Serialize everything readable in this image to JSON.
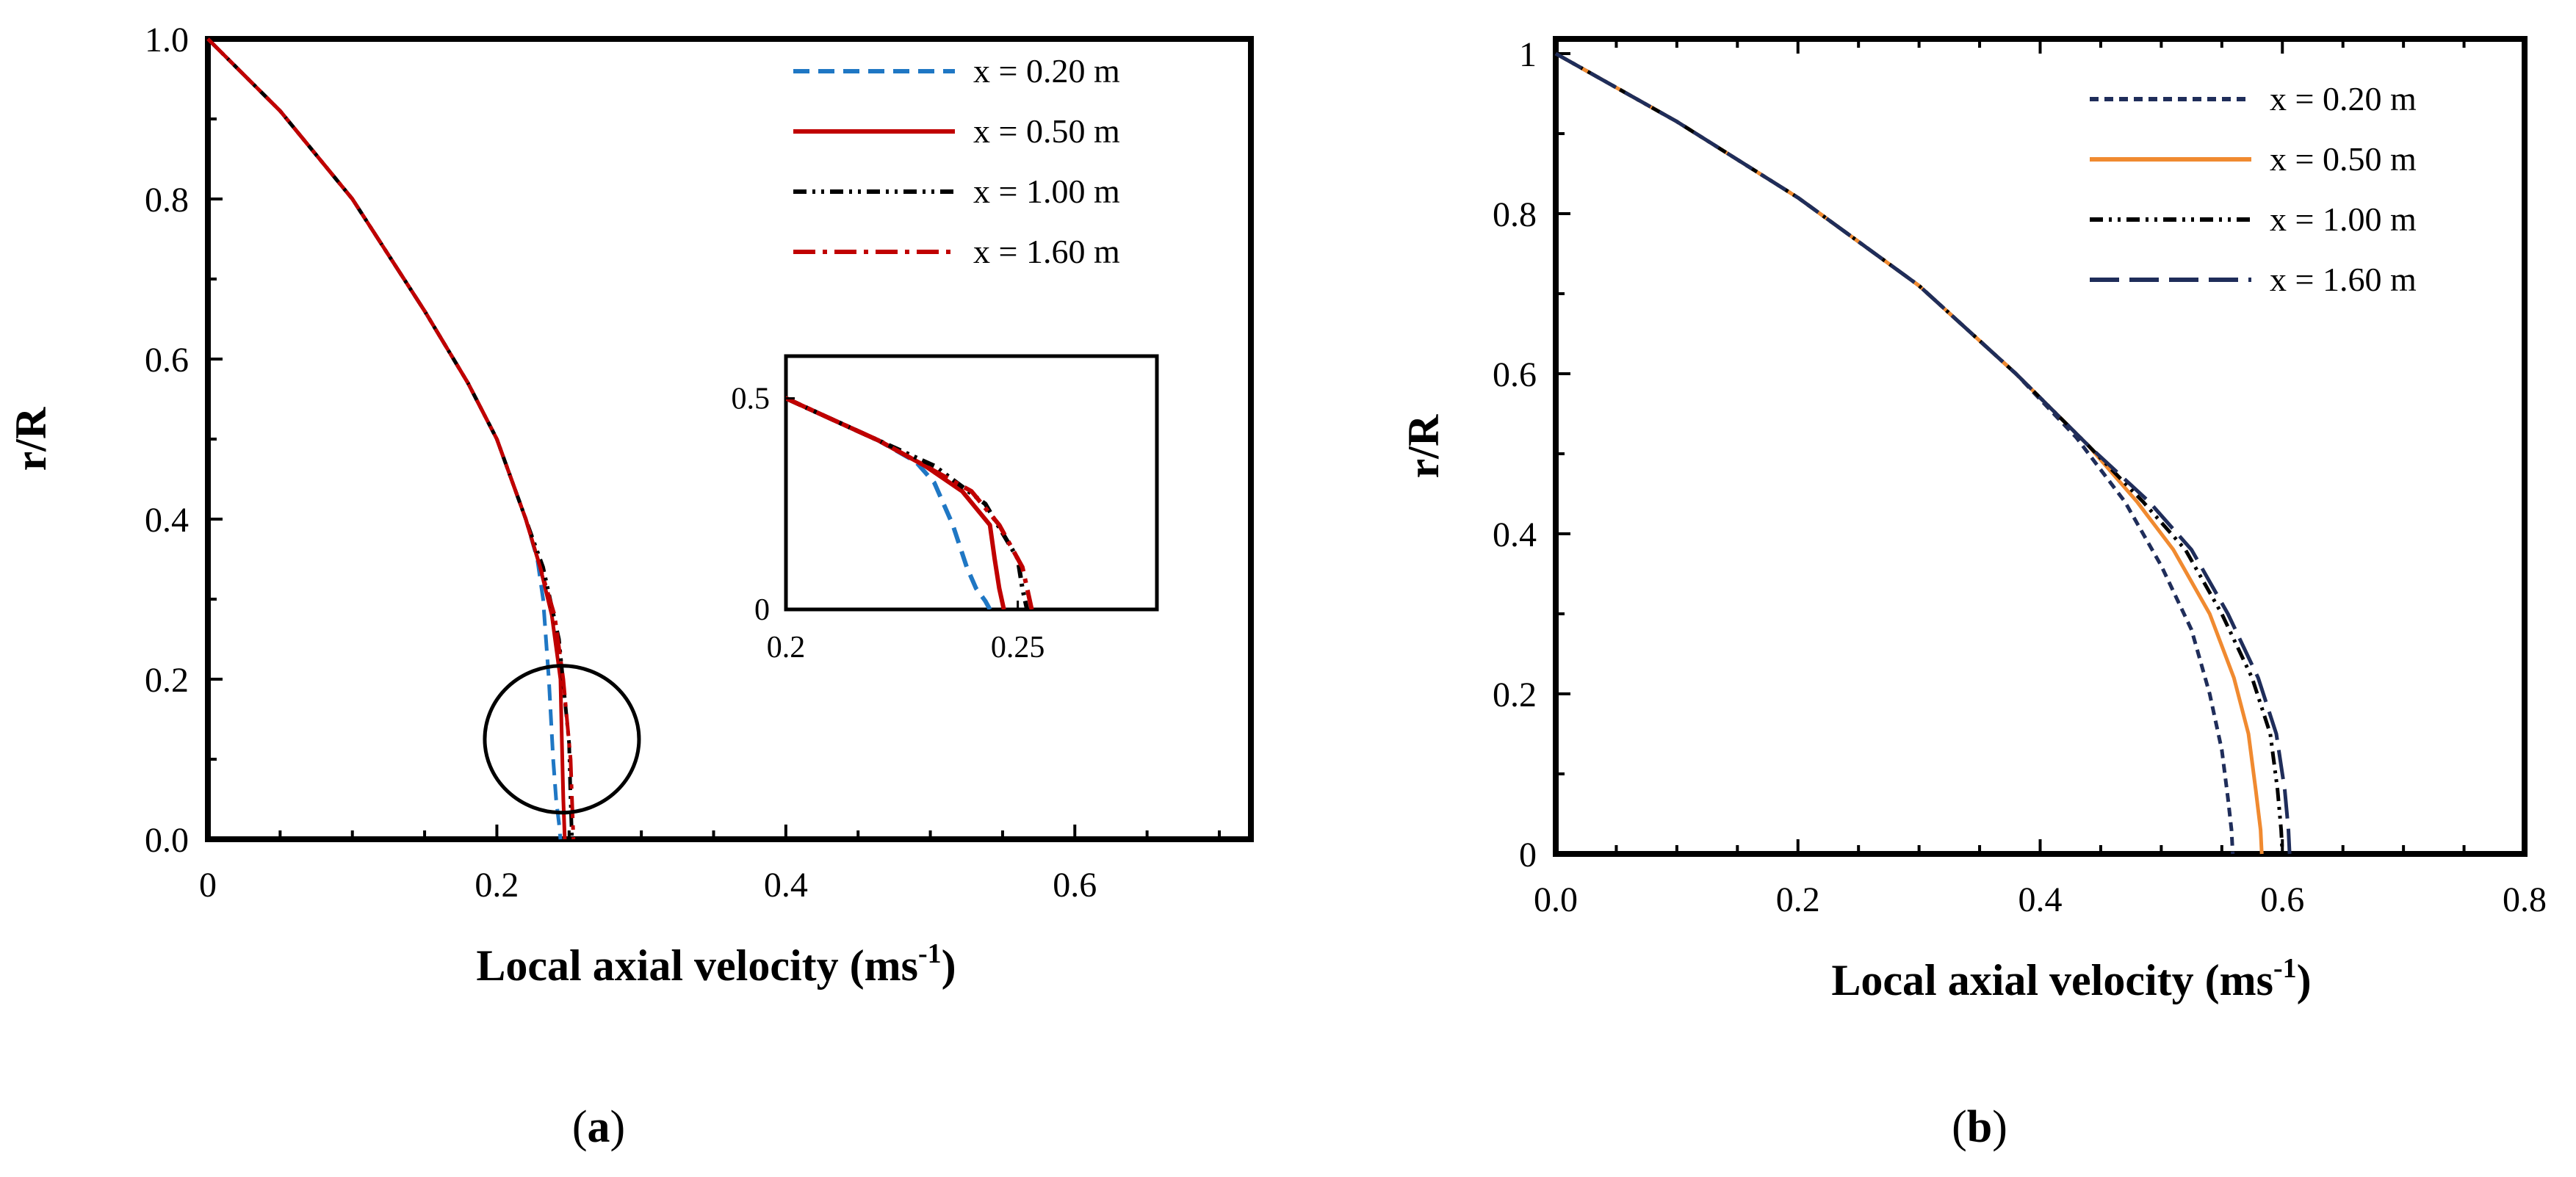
{
  "panel_labels": {
    "a": "a",
    "b": "b"
  },
  "chart_data": [
    {
      "id": "a",
      "type": "line",
      "title": "",
      "xlabel": "Local axial velocity (ms",
      "xlabel_sup": "-1",
      "xlabel_end": ")",
      "ylabel": "r/R",
      "xlim": [
        0,
        0.7
      ],
      "ylim": [
        0,
        1.0
      ],
      "xticks": [
        0,
        0.2,
        0.4,
        0.6
      ],
      "xtick_labels": [
        "0",
        "0.2",
        "0.4",
        "0.6"
      ],
      "yticks": [
        0,
        0.2,
        0.4,
        0.6,
        0.8,
        1.0
      ],
      "ytick_labels": [
        "0.0",
        "0.2",
        "0.4",
        "0.6",
        "0.8",
        "1.0"
      ],
      "grid": false,
      "legend_position": "top-right",
      "series": [
        {
          "name": "x = 0.20 m",
          "color": "#1f77c4",
          "style": "dashed",
          "x": [
            0,
            0.05,
            0.1,
            0.15,
            0.18,
            0.2,
            0.21,
            0.22,
            0.228,
            0.232,
            0.236,
            0.239,
            0.241,
            0.243,
            0.244
          ],
          "y": [
            1.0,
            0.91,
            0.8,
            0.66,
            0.57,
            0.5,
            0.45,
            0.4,
            0.35,
            0.3,
            0.2,
            0.1,
            0.05,
            0.02,
            0.0
          ]
        },
        {
          "name": "x = 0.50 m",
          "color": "#c00000",
          "style": "solid",
          "x": [
            0,
            0.05,
            0.1,
            0.15,
            0.18,
            0.2,
            0.21,
            0.22,
            0.23,
            0.238,
            0.244,
            0.245,
            0.246,
            0.247
          ],
          "y": [
            1.0,
            0.91,
            0.8,
            0.66,
            0.57,
            0.5,
            0.45,
            0.4,
            0.34,
            0.28,
            0.2,
            0.12,
            0.05,
            0.0
          ]
        },
        {
          "name": "x = 1.00 m",
          "color": "#000000",
          "style": "dashdotdot",
          "x": [
            0,
            0.05,
            0.1,
            0.15,
            0.18,
            0.2,
            0.21,
            0.22,
            0.232,
            0.243,
            0.25,
            0.251,
            0.252
          ],
          "y": [
            1.0,
            0.91,
            0.8,
            0.66,
            0.57,
            0.5,
            0.45,
            0.4,
            0.34,
            0.25,
            0.12,
            0.05,
            0.0
          ]
        },
        {
          "name": "x = 1.60 m",
          "color": "#c00000",
          "style": "dashdot",
          "x": [
            0,
            0.05,
            0.1,
            0.15,
            0.18,
            0.2,
            0.21,
            0.22,
            0.23,
            0.24,
            0.246,
            0.251,
            0.252,
            0.253
          ],
          "y": [
            1.0,
            0.91,
            0.8,
            0.66,
            0.57,
            0.5,
            0.45,
            0.4,
            0.34,
            0.28,
            0.2,
            0.1,
            0.05,
            0.0
          ]
        }
      ],
      "inset": {
        "xlim": [
          0.2,
          0.28
        ],
        "ylim": [
          0,
          0.6
        ],
        "xticks": [
          0.2,
          0.25
        ],
        "xtick_labels": [
          "0.2",
          "0.25"
        ],
        "yticks": [
          0,
          0.5
        ],
        "ytick_labels": [
          "0",
          "0.5"
        ]
      },
      "highlight_circle": {
        "x": 0.245,
        "y": 0.125
      }
    },
    {
      "id": "b",
      "type": "line",
      "title": "",
      "xlabel": "Local axial velocity (ms",
      "xlabel_sup": "-1",
      "xlabel_end": ")",
      "ylabel": "r/R",
      "xlim": [
        0,
        0.8
      ],
      "ylim": [
        0,
        1.0
      ],
      "xticks": [
        0,
        0.2,
        0.4,
        0.6,
        0.8
      ],
      "xtick_labels": [
        "0.0",
        "0.2",
        "0.4",
        "0.6",
        "0.8"
      ],
      "yticks": [
        0,
        0.2,
        0.4,
        0.6,
        0.8,
        1.0
      ],
      "ytick_labels": [
        "0",
        "0.2",
        "0.4",
        "0.6",
        "0.8",
        "1"
      ],
      "grid": false,
      "legend_position": "top-right",
      "series": [
        {
          "name": "x = 0.20 m",
          "color": "#1f2d5a",
          "style": "shortdash",
          "x": [
            0,
            0.1,
            0.2,
            0.3,
            0.38,
            0.43,
            0.47,
            0.5,
            0.525,
            0.54,
            0.55,
            0.555,
            0.558,
            0.559
          ],
          "y": [
            1.0,
            0.915,
            0.82,
            0.71,
            0.6,
            0.52,
            0.44,
            0.36,
            0.28,
            0.2,
            0.13,
            0.07,
            0.03,
            0.0
          ]
        },
        {
          "name": "x = 0.50 m",
          "color": "#f08a30",
          "style": "solid",
          "x": [
            0,
            0.1,
            0.2,
            0.3,
            0.38,
            0.44,
            0.48,
            0.51,
            0.54,
            0.56,
            0.572,
            0.578,
            0.582,
            0.583
          ],
          "y": [
            1.0,
            0.915,
            0.82,
            0.71,
            0.6,
            0.51,
            0.44,
            0.38,
            0.3,
            0.22,
            0.15,
            0.08,
            0.03,
            0.0
          ]
        },
        {
          "name": "x = 1.00 m",
          "color": "#000000",
          "style": "dashdotdot",
          "x": [
            0,
            0.1,
            0.2,
            0.3,
            0.38,
            0.44,
            0.485,
            0.52,
            0.55,
            0.575,
            0.59,
            0.596,
            0.599,
            0.6
          ],
          "y": [
            1.0,
            0.915,
            0.82,
            0.71,
            0.6,
            0.51,
            0.44,
            0.38,
            0.3,
            0.22,
            0.15,
            0.08,
            0.03,
            0.0
          ]
        },
        {
          "name": "x = 1.60 m",
          "color": "#1f2d5a",
          "style": "longdash",
          "x": [
            0,
            0.1,
            0.2,
            0.3,
            0.38,
            0.44,
            0.49,
            0.525,
            0.555,
            0.58,
            0.595,
            0.602,
            0.605,
            0.606
          ],
          "y": [
            1.0,
            0.915,
            0.82,
            0.71,
            0.6,
            0.51,
            0.44,
            0.38,
            0.3,
            0.22,
            0.15,
            0.08,
            0.03,
            0.0
          ]
        }
      ]
    }
  ]
}
